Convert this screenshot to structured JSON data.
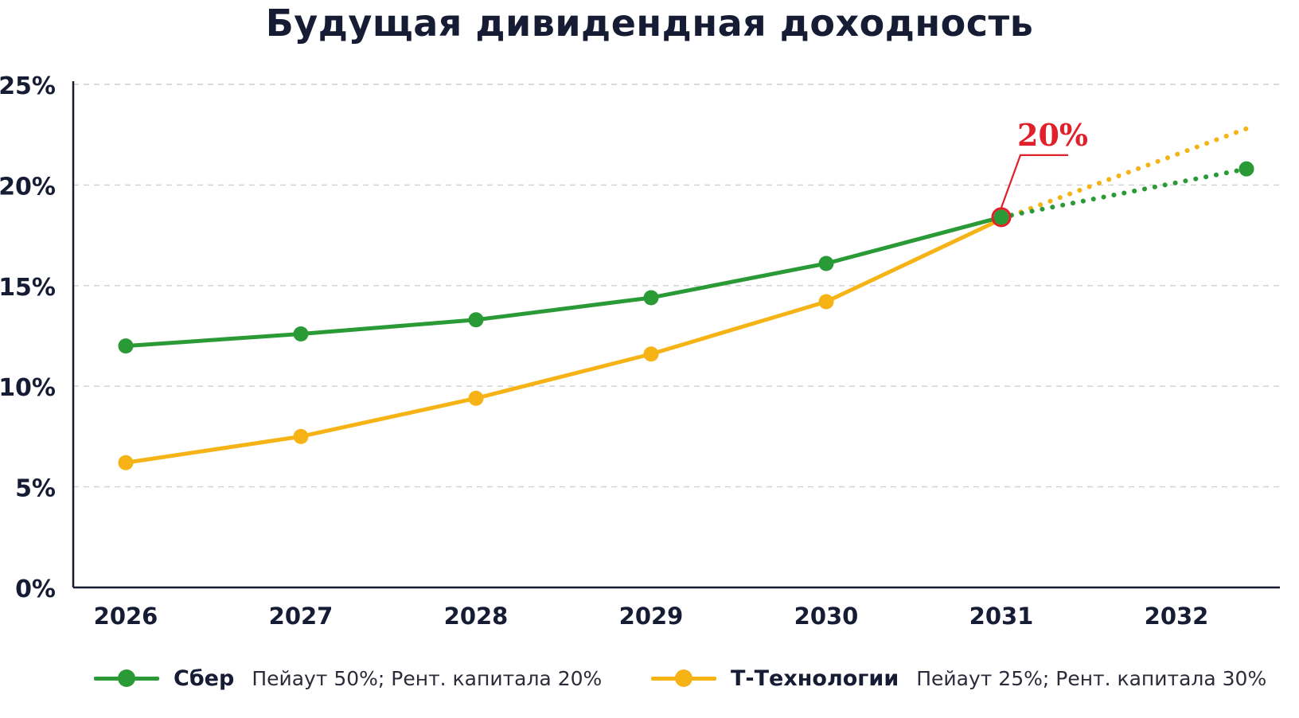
{
  "chart_data": {
    "type": "line",
    "title": "Будущая дивидендная доходность",
    "x": [
      "2026",
      "2027",
      "2028",
      "2029",
      "2030",
      "2031",
      "2032"
    ],
    "ylim": [
      0,
      25
    ],
    "yticks": [
      "0%",
      "5%",
      "10%",
      "15%",
      "20%",
      "25%"
    ],
    "grid": true,
    "legend_placement": "bottom",
    "series": [
      {
        "name": "Сбер",
        "description": "Пейаут 50%; Рент. капитала 20%",
        "color": "#2a9a36",
        "points": [
          [
            2026,
            12.0
          ],
          [
            2027,
            12.6
          ],
          [
            2028,
            13.3
          ],
          [
            2029,
            14.4
          ],
          [
            2030,
            16.1
          ],
          [
            2031,
            18.4
          ]
        ],
        "projection": [
          [
            2031,
            18.4
          ],
          [
            2032.4,
            20.8
          ]
        ]
      },
      {
        "name": "Т-Технологии",
        "description": "Пейаут 25%; Рент. капитала 30%",
        "color": "#f5b315",
        "points": [
          [
            2026,
            6.2
          ],
          [
            2027,
            7.5
          ],
          [
            2028,
            9.4
          ],
          [
            2029,
            11.6
          ],
          [
            2030,
            14.2
          ],
          [
            2031,
            18.3
          ]
        ],
        "projection": [
          [
            2031,
            18.3
          ],
          [
            2032.4,
            22.8
          ]
        ]
      }
    ],
    "annotation": {
      "text": "20%",
      "x": 2031,
      "y": 18.4,
      "color": "#e0202a"
    }
  }
}
